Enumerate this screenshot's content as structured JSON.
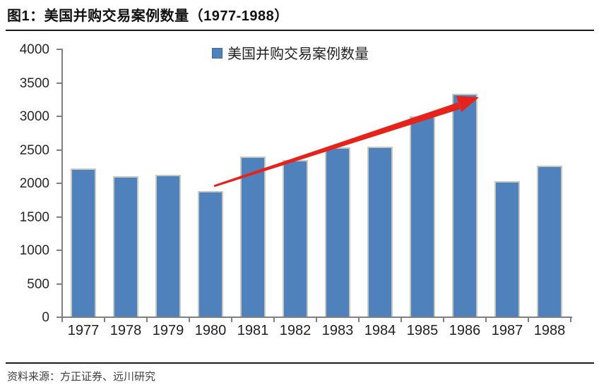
{
  "header": {
    "title": "图1：美国并购交易案例数量（1977-1988）"
  },
  "legend": {
    "label": "美国并购交易案例数量"
  },
  "footer": {
    "source": "资料来源：方正证券、远川研究"
  },
  "colors": {
    "bar_fill": "#4F81BD",
    "bar_border": "#C6C9BB",
    "axis": "#808080",
    "arrow_red": "#E5231B",
    "title_text": "#111111",
    "body_text": "#262626"
  },
  "chart_data": {
    "type": "bar",
    "title": "美国并购交易案例数量 (legend label, shown top-center)",
    "categories": [
      "1977",
      "1978",
      "1979",
      "1980",
      "1981",
      "1982",
      "1983",
      "1984",
      "1985",
      "1986",
      "1987",
      "1988"
    ],
    "values": [
      2224,
      2106,
      2128,
      1889,
      2395,
      2346,
      2533,
      2543,
      3001,
      3336,
      2032,
      2258
    ],
    "xlabel": "",
    "ylabel": "",
    "ylim": [
      0,
      4000
    ],
    "yticks": [
      0,
      500,
      1000,
      1500,
      2000,
      2500,
      3000,
      3500,
      4000
    ],
    "grid": false,
    "legend_position": "top-center",
    "annotation": "red tapered arrow rising from 1980 bar top to 1986 bar top"
  }
}
